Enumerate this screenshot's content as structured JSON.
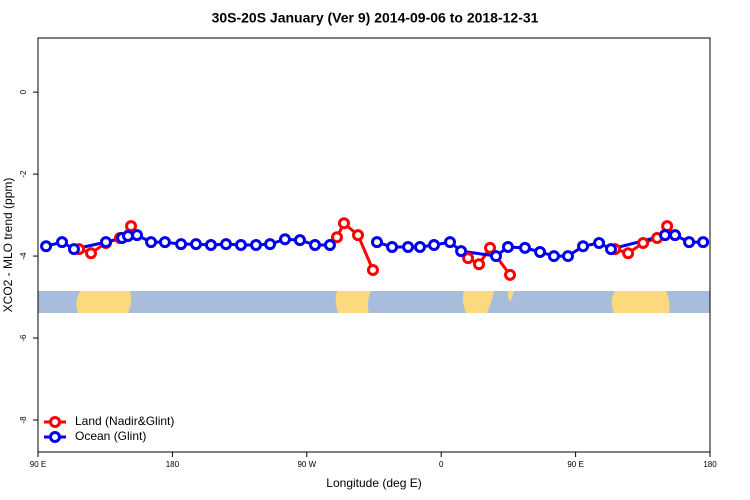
{
  "chart_data": {
    "type": "line",
    "title": "30S-20S January (Ver 9)   2014-09-06 to 2018-12-31",
    "x_label": "Longitude (deg E)",
    "y_label": "XCO2 - MLO trend (ppm)",
    "xlim": [
      90,
      540
    ],
    "ylim": [
      -8.78,
      1.32
    ],
    "xticks": [
      {
        "value": 90,
        "label": "90 E"
      },
      180,
      {
        "value": 270,
        "label": "90 W"
      },
      {
        "value": 360,
        "label": "0"
      },
      {
        "value": 450,
        "label": "90 E"
      },
      {
        "value": 540,
        "label": "180"
      }
    ],
    "yticks": [
      -8,
      -6,
      -4,
      -2,
      0
    ],
    "legend": "bottom-left",
    "series": [
      {
        "name": "Land (Nadir&Glint)",
        "color": "#ff0000",
        "x": [
          117.5,
          125.5,
          135.5,
          144.9,
          152.3,
          null,
          290.2,
          294.9,
          304.3,
          314.3,
          null,
          378.0,
          385.3,
          392.7,
          406.1,
          null,
          476.4,
          485.2,
          495.2,
          504.6,
          511.3
        ],
        "values": [
          -3.83,
          -3.93,
          -3.68,
          -3.56,
          -3.27,
          null,
          -3.54,
          -3.2,
          -3.49,
          -4.34,
          null,
          -4.05,
          -4.2,
          -3.8,
          -4.46,
          null,
          -3.83,
          -3.93,
          -3.68,
          -3.56,
          -3.27
        ]
      },
      {
        "name": "Ocean (Glint)",
        "color": "#0000ee",
        "x": [
          95.4,
          106.1,
          114.1,
          135.5,
          146.3,
          150.3,
          156.3,
          165.7,
          175.0,
          185.8,
          195.8,
          205.8,
          215.9,
          225.9,
          236.0,
          245.4,
          255.4,
          265.4,
          275.5,
          285.5,
          null,
          317.0,
          327.1,
          337.8,
          345.8,
          355.2,
          365.9,
          373.3,
          396.7,
          404.7,
          416.1,
          426.2,
          435.5,
          444.9,
          455.0,
          465.7,
          473.7,
          509.9,
          516.6,
          526.0,
          535.4
        ],
        "values": [
          -3.76,
          -3.66,
          -3.83,
          -3.66,
          -3.56,
          -3.51,
          -3.49,
          -3.66,
          -3.66,
          -3.71,
          -3.71,
          -3.73,
          -3.71,
          -3.73,
          -3.73,
          -3.71,
          -3.59,
          -3.61,
          -3.73,
          -3.73,
          null,
          -3.66,
          -3.78,
          -3.78,
          -3.78,
          -3.73,
          -3.66,
          -3.88,
          -4.0,
          -3.78,
          -3.8,
          -3.9,
          -4.0,
          -4.0,
          -3.76,
          -3.68,
          -3.83,
          -3.49,
          -3.49,
          -3.66,
          -3.66
        ]
      }
    ]
  }
}
